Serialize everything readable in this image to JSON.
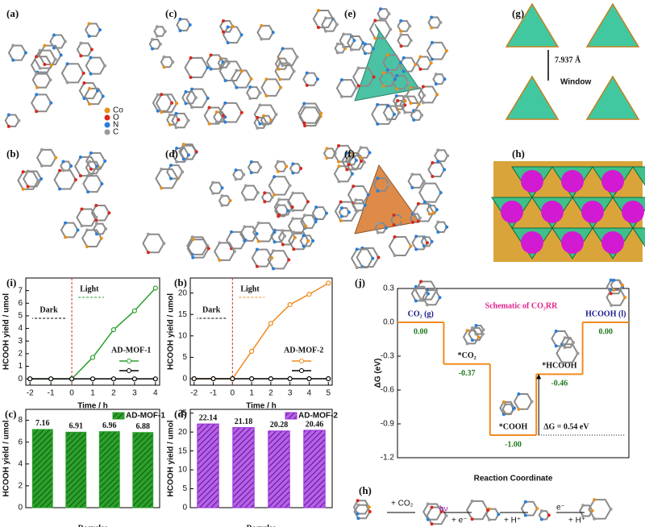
{
  "panel_labels": [
    "(a)",
    "(b)",
    "(c)",
    "(d)",
    "(e)",
    "(f)",
    "(g)",
    "(h)"
  ],
  "atom_legend": [
    {
      "name": "Co",
      "color": "#e8901c"
    },
    {
      "name": "O",
      "color": "#d8281c"
    },
    {
      "name": "N",
      "color": "#2b7fd6"
    },
    {
      "name": "C",
      "color": "#9a9a9a"
    }
  ],
  "window_panel": {
    "distance": "7.937 Å",
    "label": "Window"
  },
  "chart_data": [
    {
      "type": "line",
      "panel_label": "(i)",
      "x": [
        -2,
        -1,
        0,
        1,
        2,
        3,
        4
      ],
      "xlim": [
        -2.2,
        4.2
      ],
      "xticks": [
        -2,
        -1,
        0,
        1,
        2,
        3,
        4
      ],
      "ylim": [
        -0.5,
        8
      ],
      "yticks": [
        0,
        1,
        2,
        3,
        4,
        5,
        6,
        7
      ],
      "xlabel": "Time / h",
      "ylabel": "HCOOH yield / umol",
      "annotations": [
        "Dark",
        "Light"
      ],
      "series": [
        {
          "name": "AD-MOF-1",
          "color": "#2ca02c",
          "values": [
            0,
            0,
            0,
            1.7,
            3.9,
            5.4,
            7.2
          ]
        },
        {
          "color": "#000000",
          "values": [
            0,
            0,
            0,
            0,
            0,
            0,
            0
          ]
        }
      ]
    },
    {
      "type": "line",
      "panel_label": "(b)",
      "x": [
        -2,
        -1,
        0,
        1,
        2,
        3,
        4,
        5
      ],
      "xlim": [
        -2.2,
        5.2
      ],
      "xticks": [
        -2,
        -1,
        0,
        1,
        2,
        3,
        4,
        5
      ],
      "ylim": [
        -1.5,
        23.5
      ],
      "yticks": [
        0,
        5,
        10,
        15,
        20
      ],
      "xlabel": "Time / h",
      "ylabel": "HCOOH yield / umol",
      "annotations": [
        "Dark",
        "Light"
      ],
      "series": [
        {
          "name": "AD-MOF-2",
          "color": "#f28a1e",
          "values": [
            0,
            0,
            0,
            6.4,
            12.9,
            17.3,
            19.7,
            22.3
          ]
        },
        {
          "color": "#000000",
          "values": [
            0,
            0,
            0,
            0,
            0,
            0,
            0,
            0
          ]
        }
      ]
    },
    {
      "type": "bar",
      "panel_label": "(c)",
      "categories": [
        null,
        null,
        null,
        null
      ],
      "ylim": [
        0,
        9
      ],
      "yticks": [
        0,
        2,
        4,
        6,
        8
      ],
      "xlabel": "Recycles",
      "ylabel": "HCOOH yield / umol",
      "series": [
        {
          "name": "AD-MOF-1",
          "color": "#2ca02c",
          "values": [
            7.16,
            6.91,
            6.96,
            6.88
          ]
        }
      ]
    },
    {
      "type": "bar",
      "panel_label": "(d)",
      "categories": [
        null,
        null,
        null,
        null
      ],
      "ylim": [
        0,
        26
      ],
      "yticks": [
        0,
        5,
        10,
        15,
        20,
        25
      ],
      "xlabel": "Recycles",
      "ylabel": "HCOOH yield / umol",
      "series": [
        {
          "name": "AD-MOF-2",
          "color": "#9b30d9",
          "values": [
            22.14,
            21.18,
            20.28,
            20.46
          ]
        }
      ]
    },
    {
      "type": "step",
      "panel_label": "(j)",
      "title": "Schematic of CO₂RR",
      "categories": [
        "CO₂ (g)",
        "*CO₂",
        "*COOH",
        "*HCOOH",
        "HCOOH (l)"
      ],
      "values": [
        0,
        -0.37,
        -1,
        -0.46,
        0
      ],
      "value_labels": [
        "0.00",
        "-0.37",
        "-1.00",
        "-0.46",
        "0.00"
      ],
      "ylim": [
        -1.2,
        0.3
      ],
      "yticks": [
        0.3,
        {
          "value": 0,
          "label": "0.0"
        },
        -0.3,
        -0.6,
        -0.9,
        -1.2
      ],
      "xlabel": "Reaction Coordinate",
      "ylabel": "ΔG (eV)",
      "annotation": "ΔG = 0.54 eV",
      "color": "#f28a1e"
    }
  ],
  "scheme": {
    "label": "(h)",
    "steps": [
      "+ CO₂",
      "hν",
      "+ e⁻",
      "+ H⁺",
      "e⁻",
      "+ H⁺"
    ]
  }
}
